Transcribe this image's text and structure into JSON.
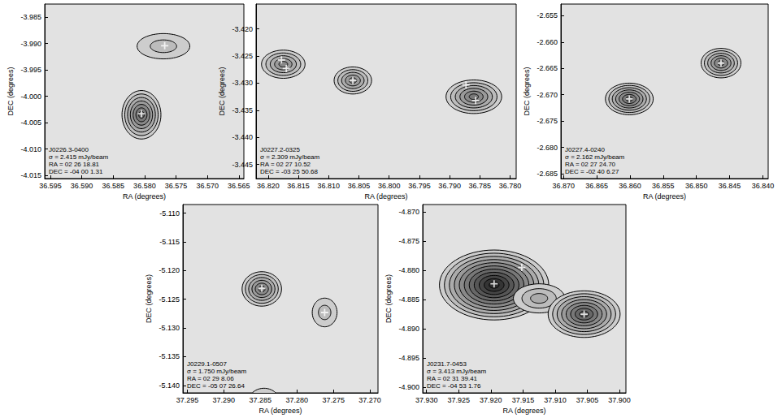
{
  "chart_data": [
    {
      "type": "contour",
      "title": "J0226.3-0400",
      "annotations": [
        "σ = 2.415 mJy/beam",
        "RA = 02 26 18.81",
        "DEC = -04 00 1.31"
      ],
      "xlabel": "RA (degrees)",
      "ylabel": "DEC (degrees)",
      "xlim": [
        36.5959,
        36.5642
      ],
      "ylim": [
        -4.0156,
        -3.9825
      ],
      "xticks": [
        36.595,
        {
          "value": 36.59,
          "label": "36.590"
        },
        36.585,
        {
          "value": 36.58,
          "label": "36.580"
        },
        36.575,
        {
          "value": 36.57,
          "label": "36.570"
        },
        36.565
      ],
      "yticks": [
        -3.985,
        {
          "value": -3.99,
          "label": "-3.990"
        },
        -3.995,
        {
          "value": -4,
          "label": "-4.000"
        },
        -4.005,
        {
          "value": -4.01,
          "label": "-4.010"
        },
        -4.015
      ],
      "sources": [
        {
          "ra": 36.5805,
          "dec": -4.0035,
          "size": [
            0.0031,
            0.0046
          ],
          "levels": 7
        },
        {
          "ra": 36.577,
          "dec": -3.9905,
          "size": [
            0.0042,
            0.0024
          ],
          "levels": 2
        }
      ],
      "peaks": {
        "x": [
          36.5805,
          36.5768
        ],
        "y": [
          -4.0033,
          -3.9904
        ]
      },
      "marker": "plus"
    },
    {
      "type": "contour",
      "title": "J0227.2-0325",
      "annotations": [
        "σ = 2.309 mJy/beam",
        "RA = 02 27 10.52",
        "DEC = -03 25 50.68"
      ],
      "xlabel": "RA (degrees)",
      "ylabel": "DEC (degrees)",
      "xlim": [
        36.822,
        36.779
      ],
      "ylim": [
        -3.4476,
        -3.4154
      ],
      "xticks": [
        {
          "value": 36.82,
          "label": "36.820"
        },
        36.815,
        {
          "value": 36.81,
          "label": "36.810"
        },
        36.805,
        {
          "value": 36.8,
          "label": "36.800"
        },
        36.795,
        {
          "value": 36.79,
          "label": "36.790"
        },
        36.785,
        {
          "value": 36.78,
          "label": "36.780"
        }
      ],
      "yticks": [
        {
          "value": -3.42,
          "label": "-3.420"
        },
        -3.425,
        {
          "value": -3.43,
          "label": "-3.430"
        },
        -3.435,
        {
          "value": -3.44,
          "label": "-3.440"
        },
        -3.445
      ],
      "sources": [
        {
          "ra": 36.8175,
          "dec": -3.4265,
          "size": [
            0.0036,
            0.0026
          ],
          "levels": 5
        },
        {
          "ra": 36.806,
          "dec": -3.4295,
          "size": [
            0.0031,
            0.0025
          ],
          "levels": 5
        },
        {
          "ra": 36.786,
          "dec": -3.4325,
          "size": [
            0.0046,
            0.0031
          ],
          "levels": 6
        }
      ],
      "peaks": {
        "x": [
          36.8178,
          36.817,
          36.806,
          36.7873,
          36.7857
        ],
        "y": [
          -3.4257,
          -3.4273,
          -3.4295,
          -3.4303,
          -3.4332
        ]
      },
      "marker": "plus"
    },
    {
      "type": "contour",
      "title": "J0227.4-0240",
      "annotations": [
        "σ = 2.162 mJy/beam",
        "RA = 02 27 24.70",
        "DEC = -02 40 6.27"
      ],
      "xlabel": "RA (degrees)",
      "ylabel": "DEC (degrees)",
      "xlim": [
        36.8704,
        36.8392
      ],
      "ylim": [
        -2.6859,
        -2.6528
      ],
      "xticks": [
        {
          "value": 36.87,
          "label": "36.870"
        },
        36.865,
        {
          "value": 36.86,
          "label": "36.860"
        },
        36.855,
        {
          "value": 36.85,
          "label": "36.850"
        },
        36.845,
        {
          "value": 36.84,
          "label": "36.840"
        }
      ],
      "yticks": [
        -2.655,
        {
          "value": -2.66,
          "label": "-2.660"
        },
        -2.665,
        {
          "value": -2.67,
          "label": "-2.670"
        },
        -2.675,
        {
          "value": -2.68,
          "label": "-2.680"
        },
        -2.685
      ],
      "sources": [
        {
          "ra": 36.8601,
          "dec": -2.6708,
          "size": [
            0.0036,
            0.003
          ],
          "levels": 7
        },
        {
          "ra": 36.8463,
          "dec": -2.664,
          "size": [
            0.003,
            0.0028
          ],
          "levels": 6
        }
      ],
      "peaks": {
        "x": [
          36.8601,
          36.8463
        ],
        "y": [
          -2.6708,
          -2.664
        ]
      },
      "marker": "plus"
    },
    {
      "type": "contour",
      "title": "J0229.1-0507",
      "annotations": [
        "σ = 1.750 mJy/beam",
        "RA = 02 29 8.06",
        "DEC = -05 07 26.64"
      ],
      "xlabel": "RA (degrees)",
      "ylabel": "DEC (degrees)",
      "xlim": [
        37.2956,
        37.2689
      ],
      "ylim": [
        -5.1413,
        -5.1085
      ],
      "xticks": [
        37.295,
        {
          "value": 37.29,
          "label": "37.290"
        },
        37.285,
        {
          "value": 37.28,
          "label": "37.280"
        },
        37.275,
        {
          "value": 37.27,
          "label": "37.270"
        }
      ],
      "yticks": [
        {
          "value": -5.11,
          "label": "-5.110"
        },
        -5.115,
        {
          "value": -5.12,
          "label": "-5.120"
        },
        -5.125,
        {
          "value": -5.13,
          "label": "-5.130"
        },
        -5.135,
        {
          "value": -5.14,
          "label": "-5.140"
        }
      ],
      "sources": [
        {
          "ra": 37.2848,
          "dec": -5.1232,
          "size": [
            0.0027,
            0.003
          ],
          "levels": 6
        },
        {
          "ra": 37.2762,
          "dec": -5.1273,
          "size": [
            0.0017,
            0.0025
          ],
          "levels": 2
        },
        {
          "ra": 37.2845,
          "dec": -5.1425,
          "size": [
            0.002,
            0.002
          ],
          "levels": 1
        }
      ],
      "peaks": {
        "x": [
          37.2848,
          37.2762
        ],
        "y": [
          -5.1231,
          -5.1273
        ]
      },
      "marker": "plus"
    },
    {
      "type": "contour",
      "title": "J0231.7-0453",
      "annotations": [
        "σ = 3.413 mJy/beam",
        "RA = 02 31 39.41",
        "DEC = -04 53 1.76"
      ],
      "xlabel": "RA (degrees)",
      "ylabel": "DEC (degrees)",
      "xlim": [
        37.9306,
        37.899
      ],
      "ylim": [
        -4.901,
        -4.8687
      ],
      "xticks": [
        {
          "value": 37.93,
          "label": "37.930"
        },
        37.925,
        {
          "value": 37.92,
          "label": "37.920"
        },
        37.915,
        {
          "value": 37.91,
          "label": "37.910"
        },
        37.905,
        {
          "value": 37.9,
          "label": "37.900"
        }
      ],
      "yticks": [
        {
          "value": -4.87,
          "label": "-4.870"
        },
        -4.875,
        {
          "value": -4.88,
          "label": "-4.880"
        },
        -4.885,
        {
          "value": -4.89,
          "label": "-4.890"
        },
        -4.895,
        {
          "value": -4.9,
          "label": "-4.900"
        }
      ],
      "sources": [
        {
          "ra": 37.9195,
          "dec": -4.8825,
          "size": [
            0.0085,
            0.006
          ],
          "levels": 11
        },
        {
          "ra": 37.9125,
          "dec": -4.8848,
          "size": [
            0.004,
            0.0025
          ],
          "levels": 3
        },
        {
          "ra": 37.9055,
          "dec": -4.8875,
          "size": [
            0.0056,
            0.004
          ],
          "levels": 8
        }
      ],
      "peaks": {
        "x": [
          37.9195,
          37.9152,
          37.9055
        ],
        "y": [
          -4.8823,
          -4.8795,
          -4.8875
        ]
      },
      "marker": "plus"
    }
  ]
}
